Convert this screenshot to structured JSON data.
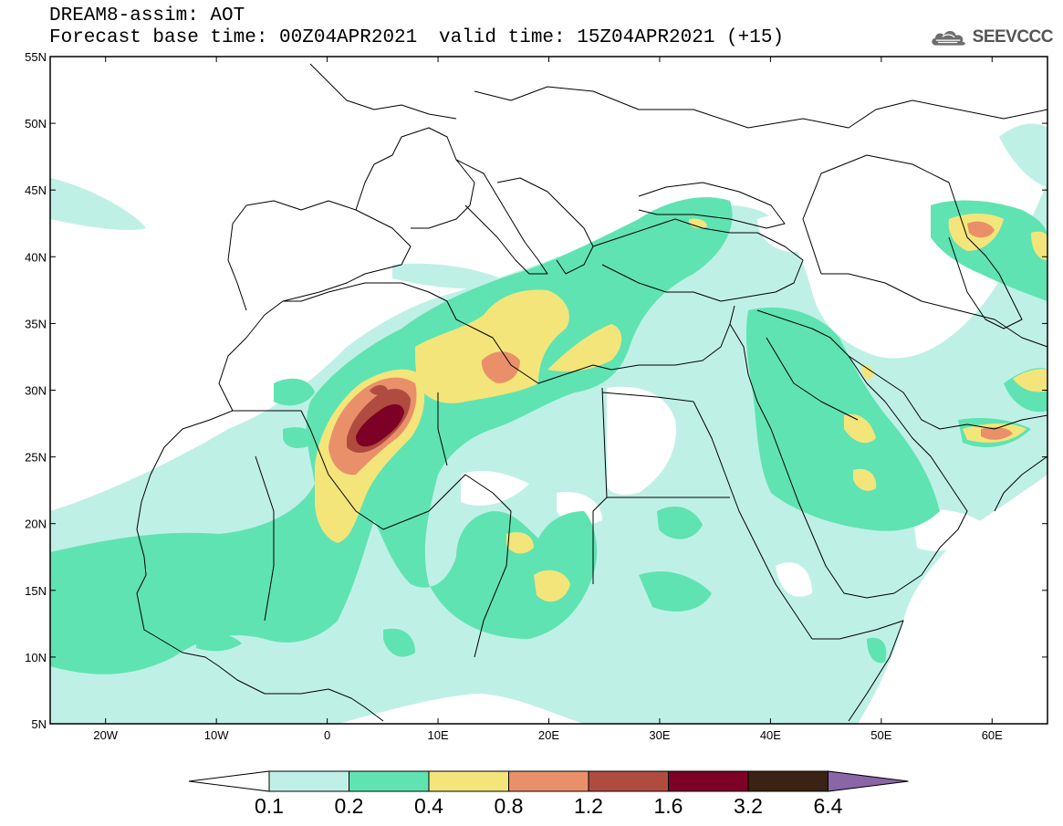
{
  "header": {
    "model_title": "DREAM8-assim: AOT",
    "base_time": "Forecast base time: 00Z04APR2021",
    "valid_time": "valid time: 15Z04APR2021 (+15)"
  },
  "logo": {
    "text": "SEEVCCC",
    "icon": "cloud-logo-icon"
  },
  "map": {
    "projection": "lat-lon",
    "lon_range": [
      -25,
      65
    ],
    "lat_range": [
      5,
      55
    ],
    "lat_ticks": [
      "55N",
      "50N",
      "45N",
      "40N",
      "35N",
      "30N",
      "25N",
      "20N",
      "15N",
      "10N",
      "5N"
    ],
    "lon_ticks": [
      "20W",
      "10W",
      "0",
      "10E",
      "20E",
      "30E",
      "40E",
      "50E",
      "60E"
    ],
    "frame_color": "#000000",
    "coastline_color": "#000000"
  },
  "colorbar": {
    "labels": [
      "0.1",
      "0.2",
      "0.4",
      "0.8",
      "1.2",
      "1.6",
      "3.2",
      "6.4"
    ],
    "colors": [
      "#ffffff",
      "#bff0e6",
      "#5fe3b2",
      "#f4e57a",
      "#e9906a",
      "#b04c3f",
      "#7d0026",
      "#3a2314",
      "#8a66a8"
    ]
  }
}
